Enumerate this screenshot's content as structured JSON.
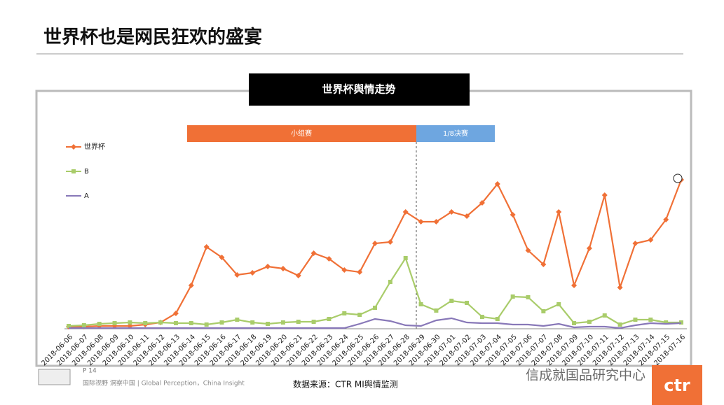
{
  "header": {
    "title": "世界杯也是网民狂欢的盛宴"
  },
  "chart_data": {
    "type": "line",
    "title": "世界杯舆情走势",
    "annotations": [
      "小组赛",
      "1/8决赛"
    ],
    "categories": [
      "2018-06-06",
      "2018-06-07",
      "2018-06-08",
      "2018-06-09",
      "2018-06-10",
      "2018-06-11",
      "2018-06-12",
      "2018-06-13",
      "2018-06-14",
      "2018-06-15",
      "2018-06-16",
      "2018-06-17",
      "2018-06-18",
      "2018-06-19",
      "2018-06-20",
      "2018-06-21",
      "2018-06-22",
      "2018-06-23",
      "2018-06-24",
      "2018-06-25",
      "2018-06-26",
      "2018-06-27",
      "2018-06-28",
      "2018-06-29",
      "2018-06-30",
      "2018-07-01",
      "2018-07-02",
      "2018-07-03",
      "2018-07-04",
      "2018-07-05",
      "2018-07-06",
      "2018-07-07",
      "2018-07-08",
      "2018-07-09",
      "2018-07-10",
      "2018-07-11",
      "2018-07-12",
      "2018-07-13",
      "2018-07-14",
      "2018-07-15",
      "2018-07-16"
    ],
    "series": [
      {
        "name": "世界杯",
        "color": "#f07036",
        "marker": "diamond",
        "values": [
          3,
          3,
          4,
          4,
          4,
          6,
          9,
          22,
          62,
          117,
          102,
          77,
          80,
          89,
          86,
          76,
          108,
          100,
          84,
          81,
          122,
          124,
          167,
          153,
          153,
          167,
          161,
          180,
          207,
          163,
          112,
          92,
          167,
          62,
          115,
          191,
          59,
          122,
          127,
          156,
          213
        ]
      },
      {
        "name": "B",
        "color": "#a9cc6a",
        "marker": "square",
        "values": [
          4,
          5,
          7,
          8,
          9,
          8,
          9,
          8,
          8,
          6,
          9,
          13,
          9,
          7,
          9,
          10,
          10,
          14,
          22,
          20,
          30,
          67,
          101,
          35,
          26,
          40,
          37,
          17,
          14,
          46,
          45,
          25,
          35,
          8,
          10,
          19,
          6,
          13,
          13,
          9,
          9
        ]
      },
      {
        "name": "A",
        "color": "#8878b8",
        "marker": "none",
        "values": [
          1,
          1,
          1,
          1,
          1,
          1,
          1,
          1,
          1,
          1,
          1,
          1,
          1,
          1,
          1,
          1,
          1,
          1,
          1,
          7,
          14,
          11,
          5,
          4,
          12,
          15,
          9,
          8,
          8,
          6,
          6,
          4,
          7,
          2,
          3,
          3,
          1,
          5,
          8,
          7,
          8
        ]
      }
    ],
    "ylim": [
      0,
      250
    ],
    "legend": "upper left"
  },
  "footer": {
    "page": "P 14",
    "slogan": "国际视野  洞察中国 | Global Perception，China Insight",
    "source": "数据来源：CTR MI舆情监测",
    "watermark": "信成就国品研究中心",
    "logo": "ctr"
  }
}
